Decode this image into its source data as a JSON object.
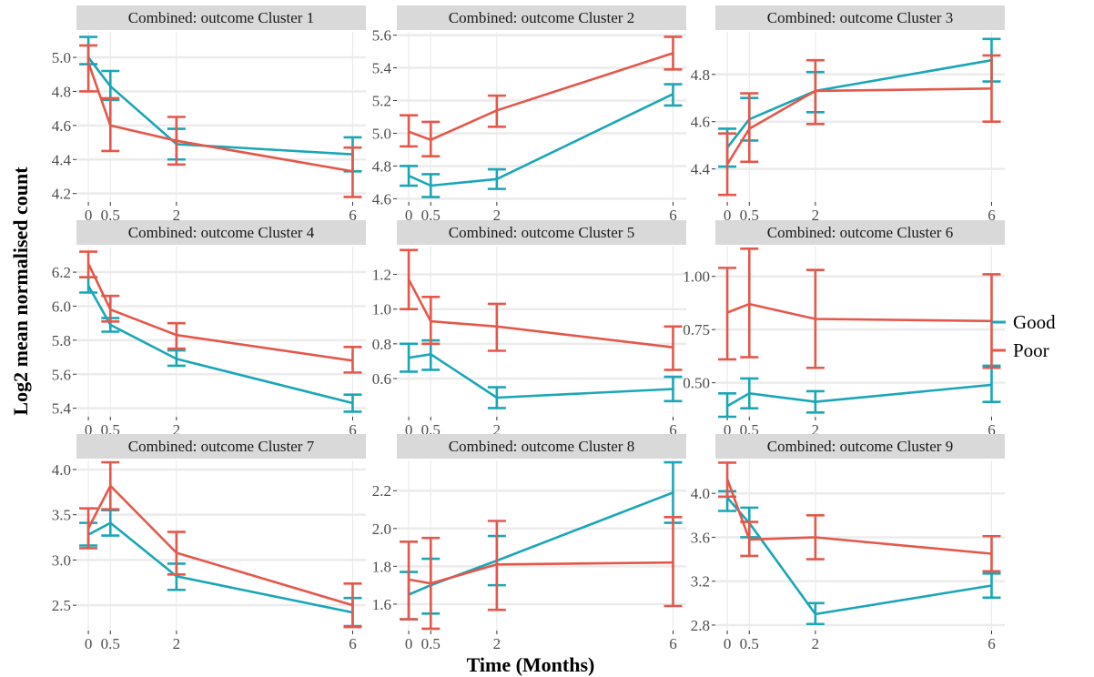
{
  "chart_data": {
    "type": "line",
    "xlabel": "Time (Months)",
    "ylabel": "Log2 mean normalised count",
    "x": [
      0,
      0.5,
      2,
      6
    ],
    "x_tick_labels": [
      "0",
      "0.5",
      "2",
      "6"
    ],
    "legend": {
      "placement": "right",
      "entries": [
        "Good",
        "Poor"
      ]
    },
    "colors": {
      "Good": "#1AA6B7",
      "Poor": "#E4574A"
    },
    "grid": true,
    "panels": [
      {
        "title": "Combined: outcome Cluster 1",
        "ylim": [
          4.15,
          5.15
        ],
        "yticks": [
          4.2,
          4.4,
          4.6,
          4.8,
          5.0
        ],
        "ytick_labels": [
          "4.2",
          "4.4",
          "4.6",
          "4.8",
          "5.0"
        ],
        "series": [
          {
            "name": "Good",
            "values": [
              5.0,
              4.83,
              4.49,
              4.43
            ],
            "lower": [
              4.96,
              4.75,
              4.4,
              4.33
            ],
            "upper": [
              5.12,
              4.92,
              4.58,
              4.53
            ]
          },
          {
            "name": "Poor",
            "values": [
              4.97,
              4.6,
              4.51,
              4.33
            ],
            "lower": [
              4.8,
              4.45,
              4.37,
              4.18
            ],
            "upper": [
              5.07,
              4.76,
              4.65,
              4.47
            ]
          }
        ]
      },
      {
        "title": "Combined: outcome Cluster 2",
        "ylim": [
          4.58,
          5.62
        ],
        "yticks": [
          4.6,
          4.8,
          5.0,
          5.2,
          5.4,
          5.6
        ],
        "ytick_labels": [
          "4.6",
          "4.8",
          "5.0",
          "5.2",
          "5.4",
          "5.6"
        ],
        "series": [
          {
            "name": "Good",
            "values": [
              4.74,
              4.68,
              4.72,
              5.24
            ],
            "lower": [
              4.68,
              4.61,
              4.66,
              5.17
            ],
            "upper": [
              4.8,
              4.75,
              4.78,
              5.3
            ]
          },
          {
            "name": "Poor",
            "values": [
              5.01,
              4.96,
              5.14,
              5.49
            ],
            "lower": [
              4.92,
              4.86,
              5.04,
              5.39
            ],
            "upper": [
              5.11,
              5.07,
              5.23,
              5.59
            ]
          }
        ]
      },
      {
        "title": "Combined: outcome Cluster 3",
        "ylim": [
          4.26,
          4.98
        ],
        "yticks": [
          4.4,
          4.6,
          4.8
        ],
        "ytick_labels": [
          "4.4",
          "4.6",
          "4.8"
        ],
        "series": [
          {
            "name": "Good",
            "values": [
              4.49,
              4.61,
              4.73,
              4.86
            ],
            "lower": [
              4.41,
              4.52,
              4.64,
              4.77
            ],
            "upper": [
              4.57,
              4.7,
              4.81,
              4.95
            ]
          },
          {
            "name": "Poor",
            "values": [
              4.42,
              4.57,
              4.73,
              4.74
            ],
            "lower": [
              4.29,
              4.43,
              4.59,
              4.6
            ],
            "upper": [
              4.55,
              4.72,
              4.86,
              4.88
            ]
          }
        ]
      },
      {
        "title": "Combined: outcome Cluster 4",
        "ylim": [
          5.35,
          6.35
        ],
        "yticks": [
          5.4,
          5.6,
          5.8,
          6.0,
          6.2
        ],
        "ytick_labels": [
          "5.4",
          "5.6",
          "5.8",
          "6.0",
          "6.2"
        ],
        "series": [
          {
            "name": "Good",
            "values": [
              6.12,
              5.89,
              5.69,
              5.43
            ],
            "lower": [
              6.08,
              5.85,
              5.65,
              5.38
            ],
            "upper": [
              6.17,
              5.93,
              5.74,
              5.48
            ]
          },
          {
            "name": "Poor",
            "values": [
              6.25,
              5.98,
              5.83,
              5.68
            ],
            "lower": [
              6.17,
              5.91,
              5.75,
              5.61
            ],
            "upper": [
              6.32,
              6.06,
              5.9,
              5.76
            ]
          }
        ]
      },
      {
        "title": "Combined: outcome Cluster 5",
        "ylim": [
          0.38,
          1.36
        ],
        "yticks": [
          0.6,
          0.8,
          1.0,
          1.2
        ],
        "ytick_labels": [
          "0.6",
          "0.8",
          "1.0",
          "1.2"
        ],
        "series": [
          {
            "name": "Good",
            "values": [
              0.72,
              0.74,
              0.49,
              0.54
            ],
            "lower": [
              0.64,
              0.65,
              0.43,
              0.47
            ],
            "upper": [
              0.8,
              0.82,
              0.55,
              0.61
            ]
          },
          {
            "name": "Poor",
            "values": [
              1.17,
              0.93,
              0.9,
              0.78
            ],
            "lower": [
              1.0,
              0.8,
              0.76,
              0.65
            ],
            "upper": [
              1.34,
              1.07,
              1.03,
              0.9
            ]
          }
        ]
      },
      {
        "title": "Combined: outcome Cluster 6",
        "ylim": [
          0.34,
          1.14
        ],
        "yticks": [
          0.5,
          0.75,
          1.0
        ],
        "ytick_labels": [
          "0.50",
          "0.75",
          "1.00"
        ],
        "series": [
          {
            "name": "Good",
            "values": [
              0.39,
              0.45,
              0.41,
              0.49
            ],
            "lower": [
              0.34,
              0.38,
              0.36,
              0.41
            ],
            "upper": [
              0.45,
              0.52,
              0.46,
              0.58
            ]
          },
          {
            "name": "Poor",
            "values": [
              0.83,
              0.87,
              0.8,
              0.79
            ],
            "lower": [
              0.61,
              0.62,
              0.57,
              0.57
            ],
            "upper": [
              1.04,
              1.13,
              1.03,
              1.01
            ]
          }
        ]
      },
      {
        "title": "Combined: outcome Cluster 7",
        "ylim": [
          2.22,
          4.1
        ],
        "yticks": [
          2.5,
          3.0,
          3.5,
          4.0
        ],
        "ytick_labels": [
          "2.5",
          "3.0",
          "3.5",
          "4.0"
        ],
        "series": [
          {
            "name": "Good",
            "values": [
              3.28,
              3.41,
              2.82,
              2.42
            ],
            "lower": [
              3.16,
              3.27,
              2.67,
              2.27
            ],
            "upper": [
              3.41,
              3.55,
              2.96,
              2.58
            ]
          },
          {
            "name": "Poor",
            "values": [
              3.35,
              3.82,
              3.08,
              2.5
            ],
            "lower": [
              3.13,
              3.56,
              2.84,
              2.26
            ],
            "upper": [
              3.57,
              4.08,
              3.31,
              2.74
            ]
          }
        ]
      },
      {
        "title": "Combined: outcome Cluster 8",
        "ylim": [
          1.46,
          2.36
        ],
        "yticks": [
          1.6,
          1.8,
          2.0,
          2.2
        ],
        "ytick_labels": [
          "1.6",
          "1.8",
          "2.0",
          "2.2"
        ],
        "series": [
          {
            "name": "Good",
            "values": [
              1.65,
              1.7,
              1.83,
              2.19
            ],
            "lower": [
              1.52,
              1.55,
              1.7,
              2.03
            ],
            "upper": [
              1.77,
              1.84,
              1.96,
              2.35
            ]
          },
          {
            "name": "Poor",
            "values": [
              1.73,
              1.71,
              1.81,
              1.82
            ],
            "lower": [
              1.52,
              1.47,
              1.57,
              1.59
            ],
            "upper": [
              1.93,
              1.95,
              2.04,
              2.06
            ]
          }
        ]
      },
      {
        "title": "Combined: outcome Cluster 9",
        "ylim": [
          2.75,
          4.3
        ],
        "yticks": [
          2.8,
          3.2,
          3.6,
          4.0
        ],
        "ytick_labels": [
          "2.8",
          "3.2",
          "3.6",
          "4.0"
        ],
        "series": [
          {
            "name": "Good",
            "values": [
              3.96,
              3.73,
              2.9,
              3.16
            ],
            "lower": [
              3.84,
              3.6,
              2.81,
              3.05
            ],
            "upper": [
              4.02,
              3.87,
              3.0,
              3.27
            ]
          },
          {
            "name": "Poor",
            "values": [
              4.13,
              3.58,
              3.6,
              3.45
            ],
            "lower": [
              3.97,
              3.43,
              3.4,
              3.29
            ],
            "upper": [
              4.28,
              3.74,
              3.8,
              3.61
            ]
          }
        ]
      }
    ]
  }
}
